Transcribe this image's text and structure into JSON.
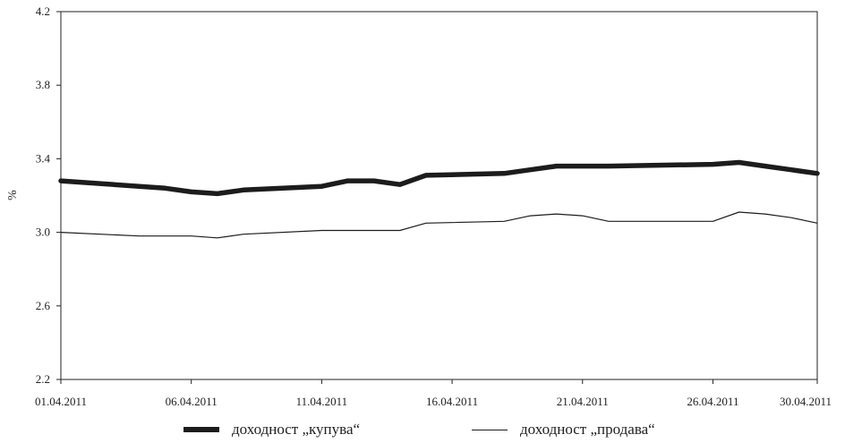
{
  "chart_data": {
    "type": "line",
    "ylabel": "%",
    "ylim": [
      2.2,
      4.2
    ],
    "yticks": [
      "2.2",
      "2.6",
      "3.0",
      "3.4",
      "3.8",
      "4.2"
    ],
    "x": [
      "01.04.2011",
      "04.04.2011",
      "05.04.2011",
      "06.04.2011",
      "07.04.2011",
      "08.04.2011",
      "11.04.2011",
      "12.04.2011",
      "13.04.2011",
      "14.04.2011",
      "15.04.2011",
      "18.04.2011",
      "19.04.2011",
      "20.04.2011",
      "21.04.2011",
      "22.04.2011",
      "26.04.2011",
      "27.04.2011",
      "28.04.2011",
      "29.04.2011",
      "30.04.2011"
    ],
    "xticks": [
      "01.04.2011",
      "06.04.2011",
      "11.04.2011",
      "16.04.2011",
      "21.04.2011",
      "26.04.2011",
      "30.04.2011"
    ],
    "series": [
      {
        "name": "доходност „купува“",
        "values": [
          3.28,
          3.25,
          3.24,
          3.22,
          3.21,
          3.23,
          3.25,
          3.28,
          3.28,
          3.26,
          3.31,
          3.32,
          3.34,
          3.36,
          3.36,
          3.36,
          3.37,
          3.38,
          3.36,
          3.34,
          3.32
        ],
        "color": "#1c1c1c"
      },
      {
        "name": "доходност „продава“",
        "values": [
          3.0,
          2.98,
          2.98,
          2.98,
          2.97,
          2.99,
          3.01,
          3.01,
          3.01,
          3.01,
          3.05,
          3.06,
          3.09,
          3.1,
          3.09,
          3.06,
          3.06,
          3.11,
          3.1,
          3.08,
          3.05
        ],
        "color": "#1c1c1c"
      }
    ],
    "grid": false,
    "legend_position": "bottom"
  }
}
